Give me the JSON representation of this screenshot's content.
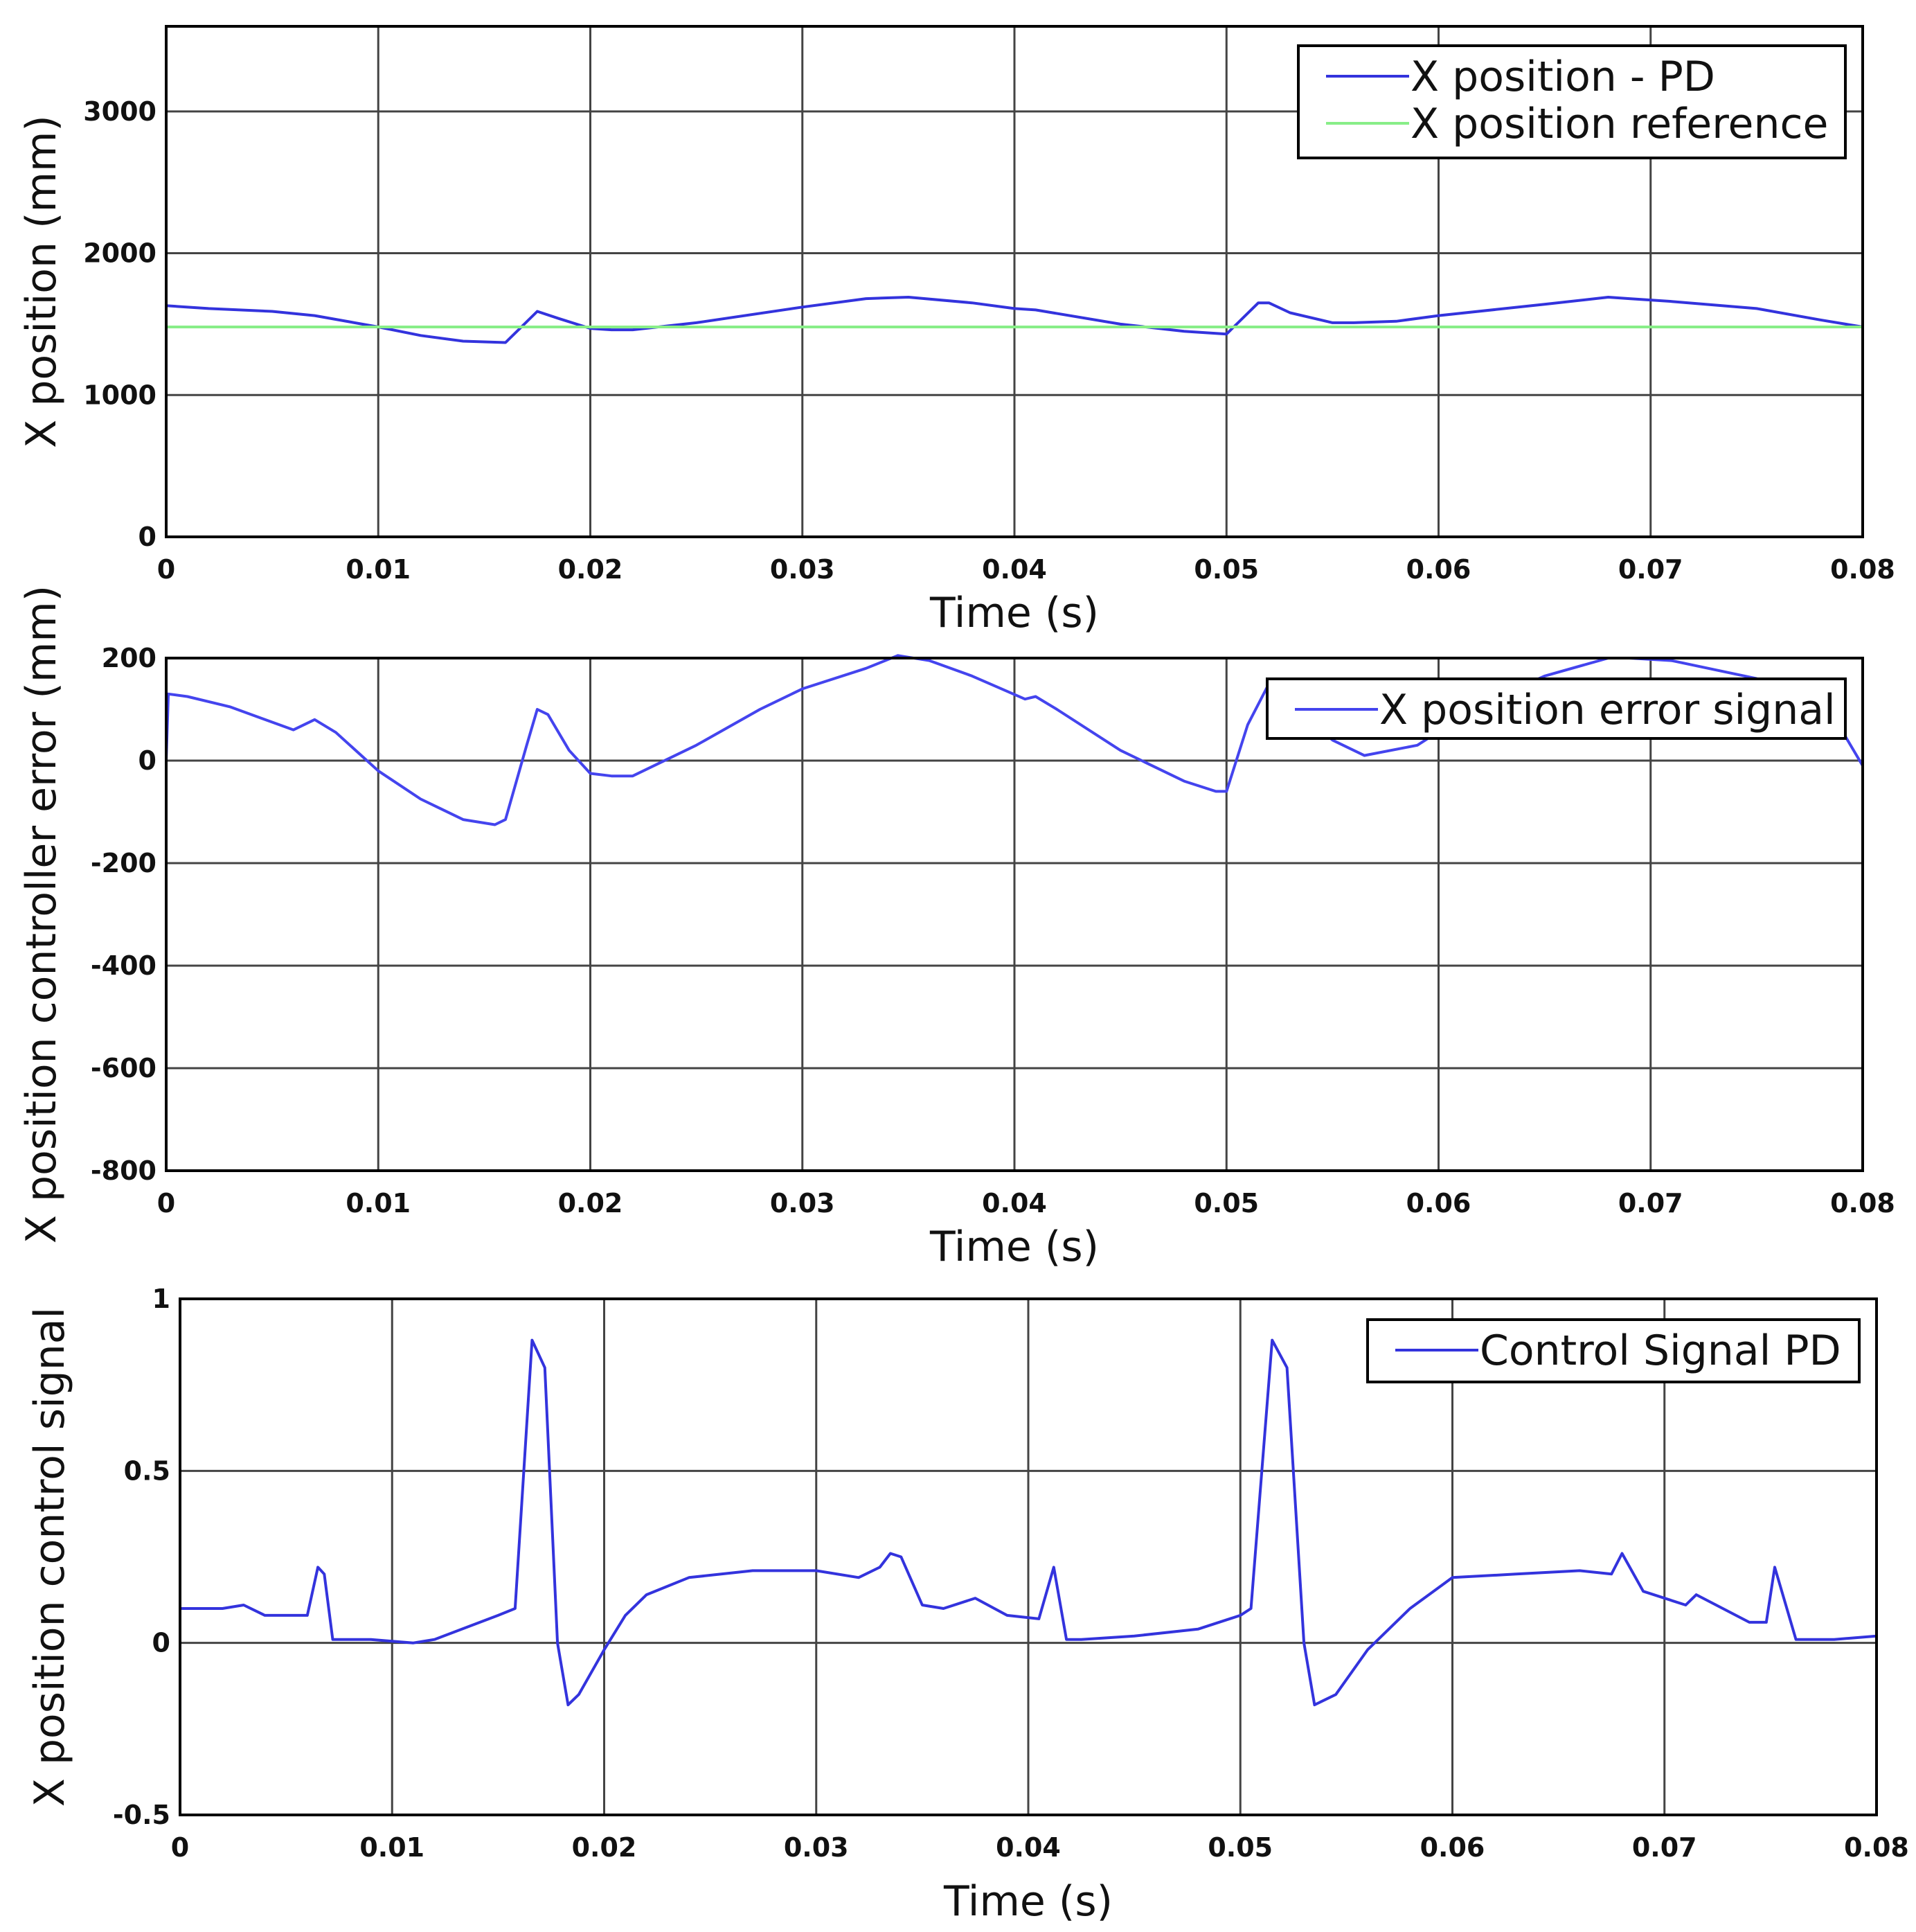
{
  "chart_data": [
    {
      "type": "line",
      "xlabel": "Time (s)",
      "ylabel": "X position (mm)",
      "xlim": [
        0,
        0.08
      ],
      "ylim": [
        0,
        3600
      ],
      "xticks": [
        "0",
        "0.01",
        "0.02",
        "0.03",
        "0.04",
        "0.05",
        "0.06",
        "0.07",
        "0.08"
      ],
      "yticks": [
        "0",
        "1000",
        "2000",
        "3000"
      ],
      "grid": true,
      "legend": "top-right",
      "series": [
        {
          "name": "X position - PD",
          "color": "#3333dd",
          "x": [
            0,
            0.002,
            0.005,
            0.007,
            0.01,
            0.012,
            0.014,
            0.016,
            0.0175,
            0.0185,
            0.02,
            0.021,
            0.022,
            0.025,
            0.03,
            0.033,
            0.035,
            0.038,
            0.04,
            0.041,
            0.045,
            0.048,
            0.05,
            0.0515,
            0.052,
            0.053,
            0.055,
            0.056,
            0.058,
            0.06,
            0.065,
            0.068,
            0.069,
            0.071,
            0.075,
            0.078,
            0.08
          ],
          "y": [
            1630,
            1610,
            1590,
            1560,
            1480,
            1420,
            1380,
            1370,
            1590,
            1540,
            1470,
            1460,
            1460,
            1510,
            1620,
            1680,
            1690,
            1650,
            1610,
            1600,
            1500,
            1450,
            1430,
            1650,
            1650,
            1580,
            1510,
            1510,
            1520,
            1560,
            1640,
            1690,
            1680,
            1660,
            1610,
            1530,
            1480
          ]
        },
        {
          "name": "X position reference",
          "color": "#88ee88",
          "x": [
            0,
            0.08
          ],
          "y": [
            1480,
            1480
          ]
        }
      ]
    },
    {
      "type": "line",
      "xlabel": "Time (s)",
      "ylabel": "X position controller error (mm)",
      "xlim": [
        0,
        0.08
      ],
      "ylim": [
        -800,
        200
      ],
      "xticks": [
        "0",
        "0.01",
        "0.02",
        "0.03",
        "0.04",
        "0.05",
        "0.06",
        "0.07",
        "0.08"
      ],
      "yticks": [
        "200",
        "0",
        "-200",
        "-400",
        "-600",
        "-800"
      ],
      "grid": true,
      "legend": "top-right",
      "series": [
        {
          "name": "X position error signal",
          "color": "#4444ee",
          "x": [
            0,
            0.0001,
            0.001,
            0.003,
            0.006,
            0.007,
            0.008,
            0.01,
            0.012,
            0.014,
            0.0155,
            0.016,
            0.017,
            0.0175,
            0.018,
            0.019,
            0.02,
            0.021,
            0.022,
            0.025,
            0.028,
            0.03,
            0.033,
            0.0345,
            0.036,
            0.038,
            0.0405,
            0.041,
            0.042,
            0.045,
            0.048,
            0.0495,
            0.05,
            0.051,
            0.052,
            0.053,
            0.055,
            0.0565,
            0.059,
            0.062,
            0.065,
            0.068,
            0.069,
            0.071,
            0.075,
            0.077,
            0.079,
            0.08
          ],
          "y": [
            0,
            130,
            125,
            105,
            60,
            80,
            55,
            -20,
            -75,
            -115,
            -125,
            -115,
            30,
            100,
            90,
            20,
            -25,
            -30,
            -30,
            30,
            100,
            140,
            180,
            205,
            195,
            165,
            120,
            125,
            100,
            20,
            -40,
            -60,
            -60,
            70,
            150,
            110,
            40,
            10,
            30,
            110,
            165,
            200,
            200,
            195,
            160,
            130,
            60,
            -10
          ]
        }
      ]
    },
    {
      "type": "line",
      "xlabel": "Time (s)",
      "ylabel": "X position control signal",
      "xlim": [
        0,
        0.08
      ],
      "ylim": [
        -0.5,
        1
      ],
      "xticks": [
        "0",
        "0.01",
        "0.02",
        "0.03",
        "0.04",
        "0.05",
        "0.06",
        "0.07",
        "0.08"
      ],
      "yticks": [
        "1",
        "0.5",
        "0",
        "-0.5"
      ],
      "grid": true,
      "legend": "top-right",
      "series": [
        {
          "name": "Control Signal PD",
          "color": "#3333dd",
          "x": [
            0,
            0.002,
            0.003,
            0.004,
            0.006,
            0.0065,
            0.0068,
            0.0072,
            0.0076,
            0.009,
            0.011,
            0.012,
            0.015,
            0.0158,
            0.0166,
            0.0172,
            0.0178,
            0.0183,
            0.0188,
            0.02,
            0.021,
            0.022,
            0.024,
            0.027,
            0.03,
            0.032,
            0.033,
            0.0335,
            0.034,
            0.035,
            0.036,
            0.0375,
            0.039,
            0.0405,
            0.0412,
            0.0418,
            0.0425,
            0.045,
            0.048,
            0.05,
            0.0505,
            0.0515,
            0.0522,
            0.053,
            0.0535,
            0.0545,
            0.056,
            0.058,
            0.06,
            0.063,
            0.066,
            0.0675,
            0.068,
            0.069,
            0.071,
            0.0715,
            0.074,
            0.0748,
            0.0752,
            0.0762,
            0.078,
            0.08
          ],
          "y": [
            0.1,
            0.1,
            0.11,
            0.08,
            0.08,
            0.22,
            0.2,
            0.01,
            0.01,
            0.01,
            0.0,
            0.01,
            0.08,
            0.1,
            0.88,
            0.8,
            0.0,
            -0.18,
            -0.15,
            -0.02,
            0.08,
            0.14,
            0.19,
            0.21,
            0.21,
            0.19,
            0.22,
            0.26,
            0.25,
            0.11,
            0.1,
            0.13,
            0.08,
            0.07,
            0.22,
            0.01,
            0.01,
            0.02,
            0.04,
            0.08,
            0.1,
            0.88,
            0.8,
            0.0,
            -0.18,
            -0.15,
            -0.02,
            0.1,
            0.19,
            0.2,
            0.21,
            0.2,
            0.26,
            0.15,
            0.11,
            0.14,
            0.06,
            0.06,
            0.22,
            0.01,
            0.01,
            0.02
          ]
        }
      ]
    }
  ]
}
